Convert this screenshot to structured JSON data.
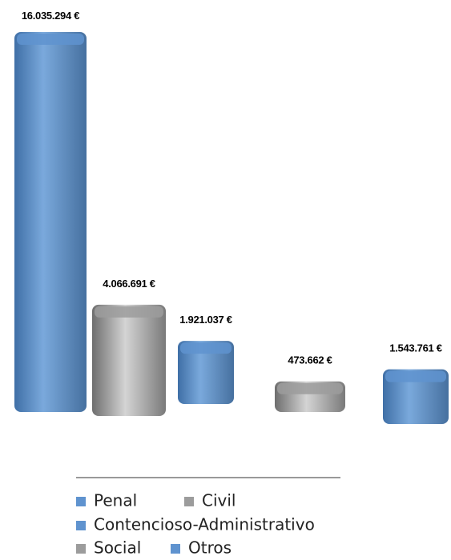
{
  "chart_data": {
    "type": "bar",
    "categories": [
      "Penal",
      "Civil",
      "Contencioso-Administrativo",
      "Social",
      "Otros"
    ],
    "values": [
      16035294,
      4066691,
      1921037,
      473662,
      1543761
    ],
    "value_labels": [
      "16.035.294 €",
      "4.066.691 €",
      "1.921.037 €",
      "473.662 €",
      "1.543.761 €"
    ],
    "colors": [
      "#5f93cf",
      "#9c9c9c",
      "#5f93cf",
      "#9c9c9c",
      "#5f93cf"
    ]
  }
}
